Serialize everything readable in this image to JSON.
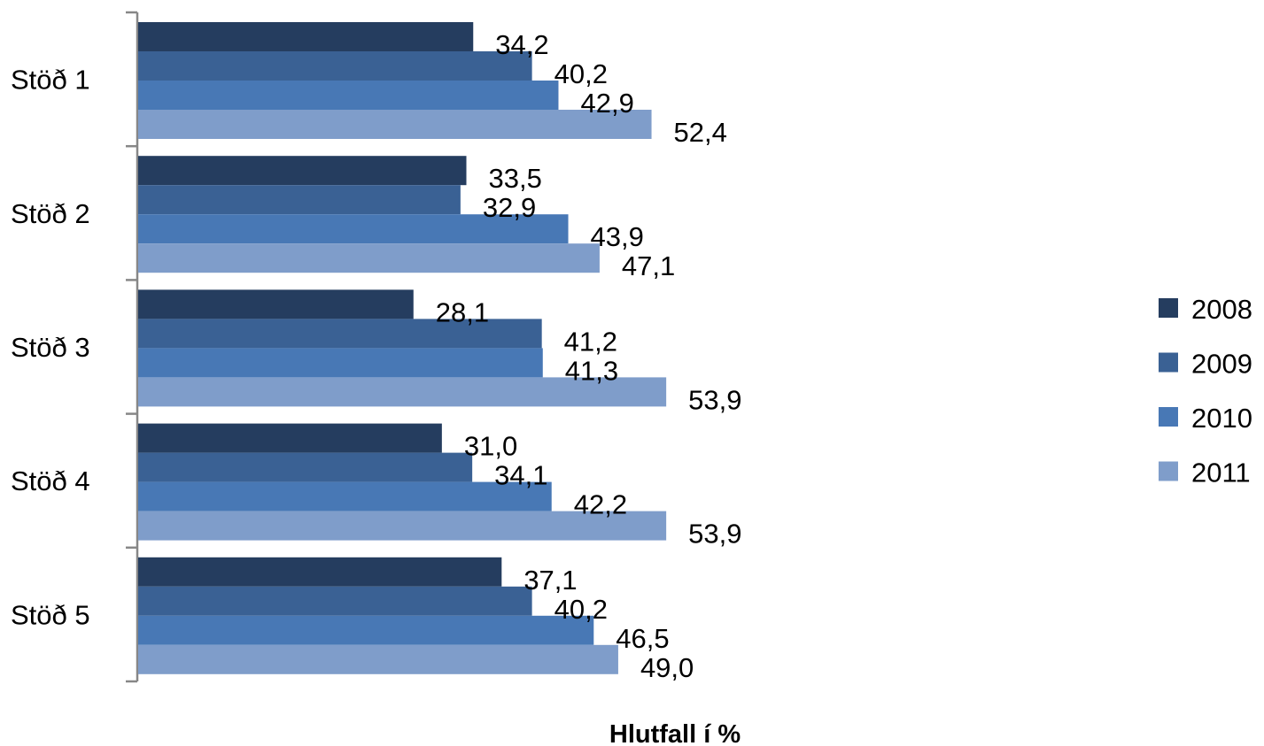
{
  "chart_data": {
    "type": "bar",
    "orientation": "horizontal",
    "categories": [
      "Stöð 1",
      "Stöð 2",
      "Stöð 3",
      "Stöð 4",
      "Stöð 5"
    ],
    "series": [
      {
        "name": "2008",
        "color": "#253D5F",
        "values": [
          34.2,
          33.5,
          28.1,
          31.0,
          37.1
        ],
        "labels": [
          "34,2",
          "33,5",
          "28,1",
          "31,0",
          "37,1"
        ]
      },
      {
        "name": "2009",
        "color": "#3A6194",
        "values": [
          40.2,
          32.9,
          41.2,
          34.1,
          40.2
        ],
        "labels": [
          "40,2",
          "32,9",
          "41,2",
          "34,1",
          "40,2"
        ]
      },
      {
        "name": "2010",
        "color": "#4878B5",
        "values": [
          42.9,
          43.9,
          41.3,
          42.2,
          46.5
        ],
        "labels": [
          "42,9",
          "43,9",
          "41,3",
          "42,2",
          "46,5"
        ]
      },
      {
        "name": "2011",
        "color": "#7F9DCA",
        "values": [
          52.4,
          47.1,
          53.9,
          53.9,
          49.0
        ],
        "labels": [
          "52,4",
          "47,1",
          "53,9",
          "53,9",
          "49,0"
        ]
      }
    ],
    "title": "",
    "xlabel": "Hlutfall í %",
    "ylabel": "",
    "xlim": [
      0,
      100
    ],
    "grid": false,
    "legend": "right"
  }
}
